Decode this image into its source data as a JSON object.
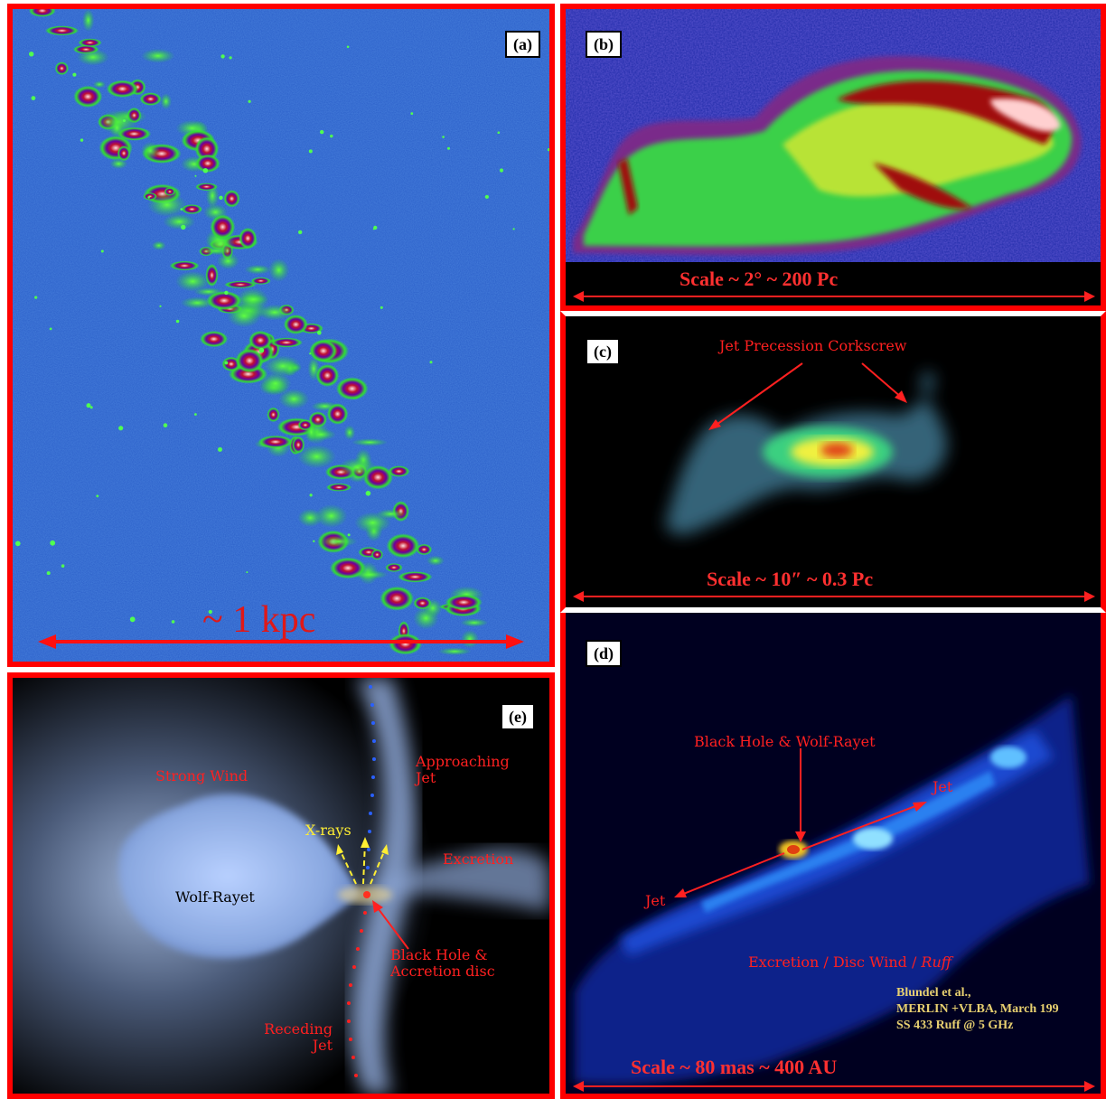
{
  "panels": {
    "a": {
      "tag": "(a)",
      "scale_label": "~ 1 kpc"
    },
    "b": {
      "tag": "(b)",
      "scale_label": "Scale ~ 2° ~ 200 Pc"
    },
    "c": {
      "tag": "(c)",
      "annotation": "Jet Precession Corkscrew",
      "scale_label": "Scale ~ 10″ ~ 0.3 Pc"
    },
    "d": {
      "tag": "(d)",
      "label_bh": "Black Hole & Wolf-Rayet",
      "label_jet_right": "Jet",
      "label_jet_left": "Jet",
      "label_excretion_main": "Excretion / Disc Wind / ",
      "label_excretion_italic": "Ruff",
      "credit_line1": "Blundel et al.,",
      "credit_line2": "MERLIN +VLBA, March 199",
      "credit_line3": "SS 433 Ruff @ 5 GHz",
      "scale_label": "Scale ~ 80 mas ~ 400 AU"
    },
    "e": {
      "tag": "(e)",
      "label_strong_wind": "Strong Wind",
      "label_approaching_1": "Approaching",
      "label_approaching_2": "Jet",
      "label_xrays": "X-rays",
      "label_excretion": "Excretion",
      "label_wolf_rayet": "Wolf-Rayet",
      "label_bh_1": "Black Hole &",
      "label_bh_2": "Accretion disc",
      "label_receding_1": "Receding",
      "label_receding_2": "Jet"
    }
  },
  "colors": {
    "frame": "#ff0000",
    "label_red": "#ff2020",
    "xray_yellow": "#ffee33",
    "credit_yellow": "#e8d070"
  }
}
